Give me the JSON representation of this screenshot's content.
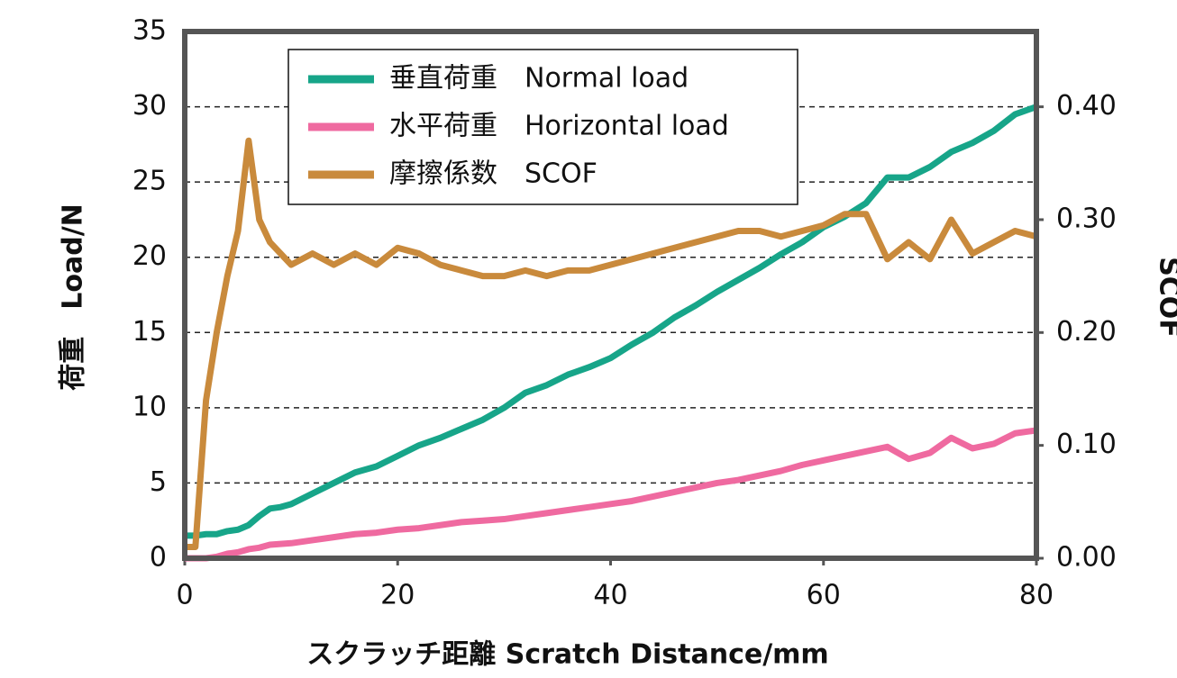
{
  "chart_data": {
    "type": "line",
    "x_label": "スクラッチ距離  Scratch Distance/mm",
    "y_label": "荷重　Load/N",
    "y2_label": "SCOF",
    "x": [
      0,
      1,
      2,
      3,
      4,
      5,
      6,
      7,
      8,
      9,
      10,
      12,
      14,
      16,
      18,
      20,
      22,
      24,
      26,
      28,
      30,
      32,
      34,
      36,
      38,
      40,
      42,
      44,
      46,
      48,
      50,
      52,
      54,
      56,
      58,
      60,
      62,
      64,
      66,
      68,
      70,
      72,
      74,
      76,
      78,
      80
    ],
    "series": [
      {
        "name": "垂直荷重　Normal load",
        "color": "#17a589",
        "values": [
          1.5,
          1.5,
          1.6,
          1.6,
          1.8,
          1.9,
          2.2,
          2.8,
          3.3,
          3.4,
          3.6,
          4.3,
          5.0,
          5.7,
          6.1,
          6.8,
          7.5,
          8.0,
          8.6,
          9.2,
          10.0,
          11.0,
          11.5,
          12.2,
          12.7,
          13.3,
          14.2,
          15.0,
          16.0,
          16.8,
          17.7,
          18.5,
          19.3,
          20.2,
          21.0,
          22.0,
          22.7,
          23.6,
          25.3,
          25.3,
          26.0,
          27.0,
          27.6,
          28.4,
          29.5,
          30.0
        ]
      },
      {
        "name": "水平荷重　Horizontal load",
        "color": "#ef6aa0",
        "values": [
          0,
          0,
          0,
          0.1,
          0.3,
          0.4,
          0.6,
          0.7,
          0.9,
          0.95,
          1.0,
          1.2,
          1.4,
          1.6,
          1.7,
          1.9,
          2.0,
          2.2,
          2.4,
          2.5,
          2.6,
          2.8,
          3.0,
          3.2,
          3.4,
          3.6,
          3.8,
          4.1,
          4.4,
          4.7,
          5.0,
          5.2,
          5.5,
          5.8,
          6.2,
          6.5,
          6.8,
          7.1,
          7.4,
          6.6,
          7.0,
          8.0,
          7.3,
          7.6,
          8.3,
          8.5
        ]
      },
      {
        "name": "摩擦係数　SCOF",
        "color": "#c98a3c",
        "axis": "y2",
        "values": [
          0.01,
          0.01,
          0.14,
          0.2,
          0.25,
          0.29,
          0.37,
          0.3,
          0.28,
          0.27,
          0.26,
          0.27,
          0.26,
          0.27,
          0.26,
          0.275,
          0.27,
          0.26,
          0.255,
          0.25,
          0.25,
          0.255,
          0.25,
          0.255,
          0.255,
          0.26,
          0.265,
          0.27,
          0.275,
          0.28,
          0.285,
          0.29,
          0.29,
          0.285,
          0.29,
          0.295,
          0.305,
          0.305,
          0.265,
          0.28,
          0.265,
          0.3,
          0.27,
          0.28,
          0.29,
          0.285
        ]
      }
    ],
    "xlim": [
      0,
      80
    ],
    "xticks": [
      0,
      20,
      40,
      60,
      80
    ],
    "ylim": [
      0,
      35
    ],
    "yticks": [
      0,
      5,
      10,
      15,
      20,
      25,
      30,
      35
    ],
    "y2lim": [
      0,
      0.4667
    ],
    "y2ticks": [
      {
        "value": 0,
        "label": "0.00"
      },
      {
        "value": 0.1,
        "label": "0.10"
      },
      {
        "value": 0.2,
        "label": "0.20"
      },
      {
        "value": 0.3,
        "label": "0.30"
      },
      {
        "value": 0.4,
        "label": "0.40"
      }
    ],
    "grid": true,
    "legend": "upper left"
  }
}
